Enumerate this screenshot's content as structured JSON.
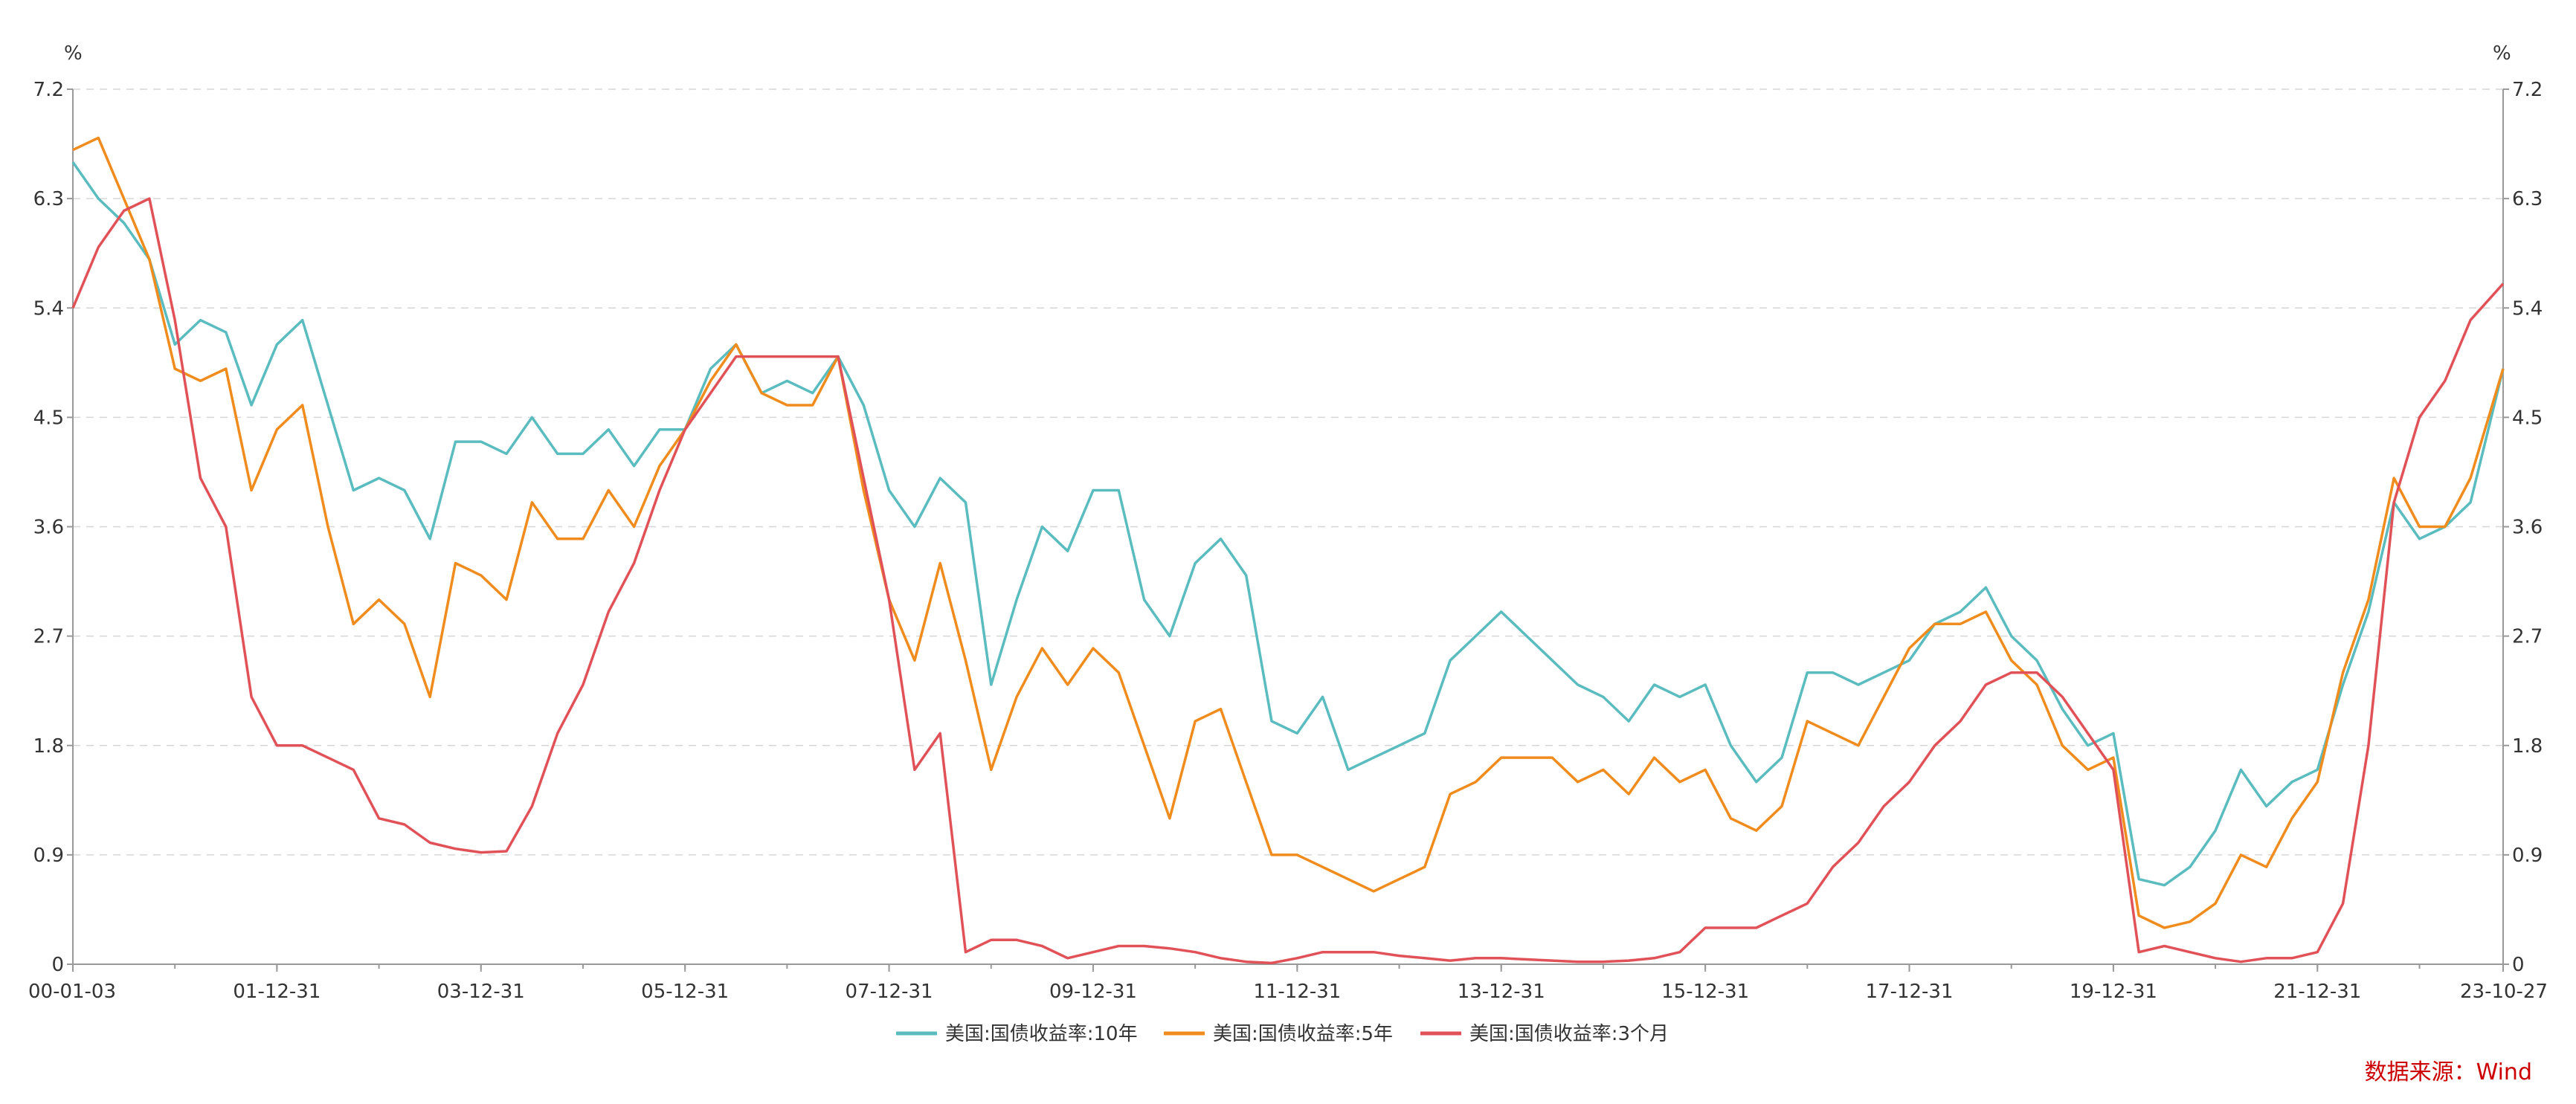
{
  "chart_data": {
    "type": "line",
    "title": "",
    "y_unit_left": "%",
    "y_unit_right": "%",
    "ylim": [
      0,
      7.2
    ],
    "y_ticks": [
      "0",
      "0.9",
      "1.8",
      "2.7",
      "3.6",
      "4.5",
      "5.4",
      "6.3",
      "7.2"
    ],
    "x_tick_labels": [
      "00-01-03",
      "01-12-31",
      "03-12-31",
      "05-12-31",
      "07-12-31",
      "09-12-31",
      "11-12-31",
      "13-12-31",
      "15-12-31",
      "17-12-31",
      "19-12-31",
      "21-12-31",
      "23-10-27"
    ],
    "x_tick_years": [
      2000.0,
      2002.0,
      2004.0,
      2006.0,
      2008.0,
      2010.0,
      2012.0,
      2014.0,
      2016.0,
      2018.0,
      2020.0,
      2022.0,
      2023.82
    ],
    "xlim_years": [
      2000.0,
      2023.82
    ],
    "grid": "horizontal dashed",
    "legend_position": "bottom",
    "source": "数据来源：Wind",
    "series": [
      {
        "name": "美国:国债收益率:10年",
        "color": "#5bbcbf",
        "x": [
          2000.0,
          2000.25,
          2000.5,
          2000.75,
          2001.0,
          2001.25,
          2001.5,
          2001.75,
          2002.0,
          2002.25,
          2002.5,
          2002.75,
          2003.0,
          2003.25,
          2003.5,
          2003.75,
          2004.0,
          2004.25,
          2004.5,
          2004.75,
          2005.0,
          2005.25,
          2005.5,
          2005.75,
          2006.0,
          2006.25,
          2006.5,
          2006.75,
          2007.0,
          2007.25,
          2007.5,
          2007.75,
          2008.0,
          2008.25,
          2008.5,
          2008.75,
          2009.0,
          2009.25,
          2009.5,
          2009.75,
          2010.0,
          2010.25,
          2010.5,
          2010.75,
          2011.0,
          2011.25,
          2011.5,
          2011.75,
          2012.0,
          2012.25,
          2012.5,
          2012.75,
          2013.0,
          2013.25,
          2013.5,
          2013.75,
          2014.0,
          2014.25,
          2014.5,
          2014.75,
          2015.0,
          2015.25,
          2015.5,
          2015.75,
          2016.0,
          2016.25,
          2016.5,
          2016.75,
          2017.0,
          2017.25,
          2017.5,
          2017.75,
          2018.0,
          2018.25,
          2018.5,
          2018.75,
          2019.0,
          2019.25,
          2019.5,
          2019.75,
          2020.0,
          2020.25,
          2020.5,
          2020.75,
          2021.0,
          2021.25,
          2021.5,
          2021.75,
          2022.0,
          2022.25,
          2022.5,
          2022.75,
          2023.0,
          2023.25,
          2023.5,
          2023.82
        ],
        "y": [
          6.6,
          6.3,
          6.1,
          5.8,
          5.1,
          5.3,
          5.2,
          4.6,
          5.1,
          5.3,
          4.6,
          3.9,
          4.0,
          3.9,
          3.5,
          4.3,
          4.3,
          4.2,
          4.5,
          4.2,
          4.2,
          4.4,
          4.1,
          4.4,
          4.4,
          4.9,
          5.1,
          4.7,
          4.8,
          4.7,
          5.0,
          4.6,
          3.9,
          3.6,
          4.0,
          3.8,
          2.3,
          3.0,
          3.6,
          3.4,
          3.9,
          3.9,
          3.0,
          2.7,
          3.3,
          3.5,
          3.2,
          2.0,
          1.9,
          2.2,
          1.6,
          1.7,
          1.8,
          1.9,
          2.5,
          2.7,
          2.9,
          2.7,
          2.5,
          2.3,
          2.2,
          2.0,
          2.3,
          2.2,
          2.3,
          1.8,
          1.5,
          1.7,
          2.4,
          2.4,
          2.3,
          2.4,
          2.5,
          2.8,
          2.9,
          3.1,
          2.7,
          2.5,
          2.1,
          1.8,
          1.9,
          0.7,
          0.65,
          0.8,
          1.1,
          1.6,
          1.3,
          1.5,
          1.6,
          2.3,
          2.9,
          3.8,
          3.5,
          3.6,
          3.8,
          4.9
        ]
      },
      {
        "name": "美国:国债收益率:5年",
        "color": "#f08c1e",
        "x": [
          2000.0,
          2000.25,
          2000.5,
          2000.75,
          2001.0,
          2001.25,
          2001.5,
          2001.75,
          2002.0,
          2002.25,
          2002.5,
          2002.75,
          2003.0,
          2003.25,
          2003.5,
          2003.75,
          2004.0,
          2004.25,
          2004.5,
          2004.75,
          2005.0,
          2005.25,
          2005.5,
          2005.75,
          2006.0,
          2006.25,
          2006.5,
          2006.75,
          2007.0,
          2007.25,
          2007.5,
          2007.75,
          2008.0,
          2008.25,
          2008.5,
          2008.75,
          2009.0,
          2009.25,
          2009.5,
          2009.75,
          2010.0,
          2010.25,
          2010.5,
          2010.75,
          2011.0,
          2011.25,
          2011.5,
          2011.75,
          2012.0,
          2012.25,
          2012.5,
          2012.75,
          2013.0,
          2013.25,
          2013.5,
          2013.75,
          2014.0,
          2014.25,
          2014.5,
          2014.75,
          2015.0,
          2015.25,
          2015.5,
          2015.75,
          2016.0,
          2016.25,
          2016.5,
          2016.75,
          2017.0,
          2017.25,
          2017.5,
          2017.75,
          2018.0,
          2018.25,
          2018.5,
          2018.75,
          2019.0,
          2019.25,
          2019.5,
          2019.75,
          2020.0,
          2020.25,
          2020.5,
          2020.75,
          2021.0,
          2021.25,
          2021.5,
          2021.75,
          2022.0,
          2022.25,
          2022.5,
          2022.75,
          2023.0,
          2023.25,
          2023.5,
          2023.82
        ],
        "y": [
          6.7,
          6.8,
          6.3,
          5.8,
          4.9,
          4.8,
          4.9,
          3.9,
          4.4,
          4.6,
          3.6,
          2.8,
          3.0,
          2.8,
          2.2,
          3.3,
          3.2,
          3.0,
          3.8,
          3.5,
          3.5,
          3.9,
          3.6,
          4.1,
          4.4,
          4.8,
          5.1,
          4.7,
          4.6,
          4.6,
          5.0,
          3.9,
          3.0,
          2.5,
          3.3,
          2.5,
          1.6,
          2.2,
          2.6,
          2.3,
          2.6,
          2.4,
          1.8,
          1.2,
          2.0,
          2.1,
          1.5,
          0.9,
          0.9,
          0.8,
          0.7,
          0.6,
          0.7,
          0.8,
          1.4,
          1.5,
          1.7,
          1.7,
          1.7,
          1.5,
          1.6,
          1.4,
          1.7,
          1.5,
          1.6,
          1.2,
          1.1,
          1.3,
          2.0,
          1.9,
          1.8,
          2.2,
          2.6,
          2.8,
          2.8,
          2.9,
          2.5,
          2.3,
          1.8,
          1.6,
          1.7,
          0.4,
          0.3,
          0.35,
          0.5,
          0.9,
          0.8,
          1.2,
          1.5,
          2.4,
          3.0,
          4.0,
          3.6,
          3.6,
          4.0,
          4.9
        ]
      },
      {
        "name": "美国:国债收益率:3个月",
        "color": "#e05258",
        "x": [
          2000.0,
          2000.25,
          2000.5,
          2000.75,
          2001.0,
          2001.25,
          2001.5,
          2001.75,
          2002.0,
          2002.25,
          2002.5,
          2002.75,
          2003.0,
          2003.25,
          2003.5,
          2003.75,
          2004.0,
          2004.25,
          2004.5,
          2004.75,
          2005.0,
          2005.25,
          2005.5,
          2005.75,
          2006.0,
          2006.25,
          2006.5,
          2006.75,
          2007.0,
          2007.25,
          2007.5,
          2007.75,
          2008.0,
          2008.25,
          2008.5,
          2008.75,
          2009.0,
          2009.25,
          2009.5,
          2009.75,
          2010.0,
          2010.25,
          2010.5,
          2010.75,
          2011.0,
          2011.25,
          2011.5,
          2011.75,
          2012.0,
          2012.25,
          2012.5,
          2012.75,
          2013.0,
          2013.25,
          2013.5,
          2013.75,
          2014.0,
          2014.25,
          2014.5,
          2014.75,
          2015.0,
          2015.25,
          2015.5,
          2015.75,
          2016.0,
          2016.25,
          2016.5,
          2016.75,
          2017.0,
          2017.25,
          2017.5,
          2017.75,
          2018.0,
          2018.25,
          2018.5,
          2018.75,
          2019.0,
          2019.25,
          2019.5,
          2019.75,
          2020.0,
          2020.25,
          2020.5,
          2020.75,
          2021.0,
          2021.25,
          2021.5,
          2021.75,
          2022.0,
          2022.25,
          2022.5,
          2022.75,
          2023.0,
          2023.25,
          2023.5,
          2023.82
        ],
        "y": [
          5.4,
          5.9,
          6.2,
          6.3,
          5.3,
          4.0,
          3.6,
          2.2,
          1.8,
          1.8,
          1.7,
          1.6,
          1.2,
          1.15,
          1.0,
          0.95,
          0.92,
          0.93,
          1.3,
          1.9,
          2.3,
          2.9,
          3.3,
          3.9,
          4.4,
          4.7,
          5.0,
          5.0,
          5.0,
          5.0,
          5.0,
          4.0,
          3.0,
          1.6,
          1.9,
          0.1,
          0.2,
          0.2,
          0.15,
          0.05,
          0.1,
          0.15,
          0.15,
          0.13,
          0.1,
          0.05,
          0.02,
          0.01,
          0.05,
          0.1,
          0.1,
          0.1,
          0.07,
          0.05,
          0.03,
          0.05,
          0.05,
          0.04,
          0.03,
          0.02,
          0.02,
          0.03,
          0.05,
          0.1,
          0.3,
          0.3,
          0.3,
          0.4,
          0.5,
          0.8,
          1.0,
          1.3,
          1.5,
          1.8,
          2.0,
          2.3,
          2.4,
          2.4,
          2.2,
          1.9,
          1.6,
          0.1,
          0.15,
          0.1,
          0.05,
          0.02,
          0.05,
          0.05,
          0.1,
          0.5,
          1.8,
          3.8,
          4.5,
          4.8,
          5.3,
          5.6
        ]
      }
    ]
  }
}
